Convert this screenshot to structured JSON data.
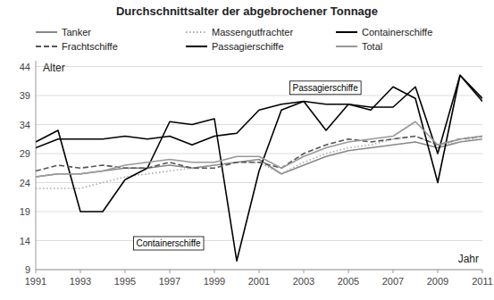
{
  "chart_data": {
    "type": "line",
    "title": "Durchschnittsalter der abgebrochener Tonnage",
    "xlabel": "Jahr",
    "ylabel": "Alter",
    "x": [
      1991,
      1992,
      1993,
      1994,
      1995,
      1996,
      1997,
      1998,
      1999,
      2000,
      2001,
      2002,
      2003,
      2004,
      2005,
      2006,
      2007,
      2008,
      2009,
      2010,
      2011
    ],
    "series": [
      {
        "name": "Tanker",
        "color": "#888888",
        "line_style": "solid",
        "values": [
          25.0,
          25.5,
          25.5,
          26.0,
          26.5,
          26.5,
          27.0,
          26.5,
          27.0,
          27.5,
          28.0,
          25.5,
          27.0,
          28.5,
          29.5,
          30.0,
          30.5,
          31.0,
          30.0,
          31.0,
          31.5
        ]
      },
      {
        "name": "Massengutfrachter",
        "color": "#aaaaaa",
        "line_style": "dotted",
        "values": [
          23.0,
          23.0,
          23.0,
          24.0,
          25.0,
          25.5,
          26.0,
          26.5,
          27.0,
          27.5,
          27.5,
          25.5,
          27.5,
          29.0,
          30.0,
          30.5,
          31.5,
          32.0,
          30.5,
          31.0,
          32.0
        ]
      },
      {
        "name": "Containerschiffe",
        "color": "#000000",
        "line_style": "solid",
        "values": [
          31.0,
          33.0,
          19.0,
          19.0,
          24.5,
          26.5,
          34.5,
          34.0,
          35.0,
          10.5,
          26.0,
          36.5,
          38.0,
          33.0,
          37.5,
          37.0,
          37.0,
          40.5,
          29.0,
          42.5,
          38.0
        ]
      },
      {
        "name": "Frachtschiffe",
        "color": "#555555",
        "line_style": "dashed",
        "values": [
          26.0,
          27.0,
          26.5,
          27.0,
          26.5,
          26.5,
          27.5,
          26.5,
          26.5,
          27.5,
          27.5,
          26.5,
          29.0,
          30.5,
          31.5,
          31.0,
          31.5,
          32.0,
          30.5,
          31.5,
          32.0
        ]
      },
      {
        "name": "Passagierschiffe",
        "color": "#000000",
        "line_style": "solid",
        "values": [
          30.0,
          31.5,
          31.5,
          31.5,
          32.0,
          31.5,
          32.0,
          30.5,
          32.0,
          32.5,
          36.5,
          37.5,
          38.0,
          37.5,
          37.5,
          36.5,
          40.5,
          38.5,
          24.0,
          42.5,
          38.5
        ]
      },
      {
        "name": "Total",
        "color": "#999999",
        "line_style": "solid",
        "values": [
          25.0,
          25.5,
          25.5,
          26.0,
          27.0,
          27.5,
          28.0,
          27.5,
          27.5,
          28.5,
          28.5,
          26.5,
          28.5,
          30.0,
          31.0,
          31.5,
          32.0,
          34.5,
          30.5,
          31.5,
          32.0
        ]
      }
    ],
    "xlim": [
      1991,
      2011
    ],
    "xticks": [
      1991,
      1993,
      1995,
      1997,
      1999,
      2001,
      2003,
      2005,
      2007,
      2009,
      2011
    ],
    "ylim": [
      9,
      45
    ],
    "yticks": [
      9,
      14,
      19,
      24,
      29,
      34,
      39,
      44
    ],
    "grid": true,
    "legend": "top",
    "annotations": [
      {
        "text": "Containerschiffe",
        "x": 1995.5,
        "y": 13.0
      },
      {
        "text": "Passagierschiffe",
        "x": 2002.5,
        "y": 39.8
      }
    ]
  }
}
